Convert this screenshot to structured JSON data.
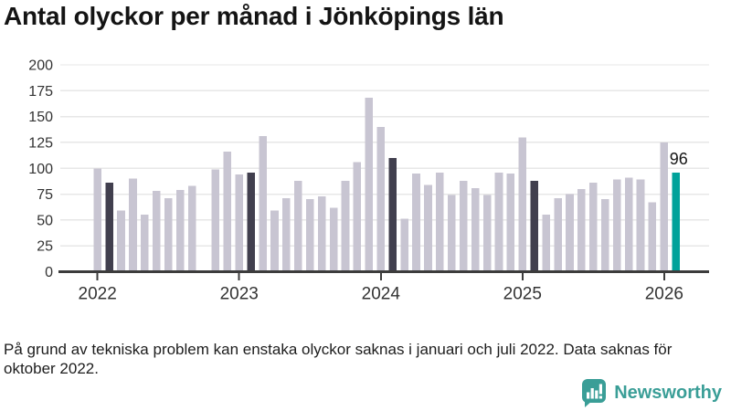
{
  "title": "Antal olyckor per månad i Jönköpings län",
  "footnote": "På grund av tekniska problem kan enstaka olyckor saknas i januari och juli 2022. Data saknas för oktober 2022.",
  "branding": {
    "name": "Newsworthy",
    "icon": "bar-chart-speech-bubble-icon",
    "color": "#3a9e97"
  },
  "colors": {
    "bar_default": "#c8c5d2",
    "bar_highlight": "#413f4e",
    "bar_current": "#00a29a",
    "gridline": "#e7e7e7",
    "axis": "#3c3c3c",
    "tick_label": "#333333",
    "annotation": "#151515"
  },
  "chart_data": {
    "type": "bar",
    "title": "Antal olyckor per månad i Jönköpings län",
    "xlabel": "",
    "ylabel": "",
    "ylim": [
      0,
      200
    ],
    "y_ticks": [
      0,
      25,
      50,
      75,
      100,
      125,
      150,
      175,
      200
    ],
    "x_tick_labels": [
      "2022",
      "2023",
      "2024",
      "2025",
      "2026"
    ],
    "grid": "horizontal",
    "legend": "none",
    "annotation": {
      "text": "96",
      "month": "2026-02"
    },
    "missing_data_months": [
      "2022-10"
    ],
    "months": [
      {
        "month": "2022-01",
        "value": 100,
        "role": "default"
      },
      {
        "month": "2022-02",
        "value": 86,
        "role": "highlight"
      },
      {
        "month": "2022-03",
        "value": 59,
        "role": "default"
      },
      {
        "month": "2022-04",
        "value": 90,
        "role": "default"
      },
      {
        "month": "2022-05",
        "value": 55,
        "role": "default"
      },
      {
        "month": "2022-06",
        "value": 78,
        "role": "default"
      },
      {
        "month": "2022-07",
        "value": 71,
        "role": "default"
      },
      {
        "month": "2022-08",
        "value": 79,
        "role": "default"
      },
      {
        "month": "2022-09",
        "value": 83,
        "role": "default"
      },
      {
        "month": "2022-10",
        "value": null,
        "role": "default"
      },
      {
        "month": "2022-11",
        "value": 99,
        "role": "default"
      },
      {
        "month": "2022-12",
        "value": 116,
        "role": "default"
      },
      {
        "month": "2023-01",
        "value": 94,
        "role": "default"
      },
      {
        "month": "2023-02",
        "value": 96,
        "role": "highlight"
      },
      {
        "month": "2023-03",
        "value": 131,
        "role": "default"
      },
      {
        "month": "2023-04",
        "value": 59,
        "role": "default"
      },
      {
        "month": "2023-05",
        "value": 71,
        "role": "default"
      },
      {
        "month": "2023-06",
        "value": 88,
        "role": "default"
      },
      {
        "month": "2023-07",
        "value": 70,
        "role": "default"
      },
      {
        "month": "2023-08",
        "value": 73,
        "role": "default"
      },
      {
        "month": "2023-09",
        "value": 62,
        "role": "default"
      },
      {
        "month": "2023-10",
        "value": 88,
        "role": "default"
      },
      {
        "month": "2023-11",
        "value": 106,
        "role": "default"
      },
      {
        "month": "2023-12",
        "value": 168,
        "role": "default"
      },
      {
        "month": "2024-01",
        "value": 140,
        "role": "default"
      },
      {
        "month": "2024-02",
        "value": 110,
        "role": "highlight"
      },
      {
        "month": "2024-03",
        "value": 51,
        "role": "default"
      },
      {
        "month": "2024-04",
        "value": 95,
        "role": "default"
      },
      {
        "month": "2024-05",
        "value": 84,
        "role": "default"
      },
      {
        "month": "2024-06",
        "value": 96,
        "role": "default"
      },
      {
        "month": "2024-07",
        "value": 74,
        "role": "default"
      },
      {
        "month": "2024-08",
        "value": 88,
        "role": "default"
      },
      {
        "month": "2024-09",
        "value": 81,
        "role": "default"
      },
      {
        "month": "2024-10",
        "value": 74,
        "role": "default"
      },
      {
        "month": "2024-11",
        "value": 96,
        "role": "default"
      },
      {
        "month": "2024-12",
        "value": 95,
        "role": "default"
      },
      {
        "month": "2025-01",
        "value": 130,
        "role": "default"
      },
      {
        "month": "2025-02",
        "value": 88,
        "role": "highlight"
      },
      {
        "month": "2025-03",
        "value": 55,
        "role": "default"
      },
      {
        "month": "2025-04",
        "value": 71,
        "role": "default"
      },
      {
        "month": "2025-05",
        "value": 75,
        "role": "default"
      },
      {
        "month": "2025-06",
        "value": 80,
        "role": "default"
      },
      {
        "month": "2025-07",
        "value": 86,
        "role": "default"
      },
      {
        "month": "2025-08",
        "value": 70,
        "role": "default"
      },
      {
        "month": "2025-09",
        "value": 89,
        "role": "default"
      },
      {
        "month": "2025-10",
        "value": 91,
        "role": "default"
      },
      {
        "month": "2025-11",
        "value": 89,
        "role": "default"
      },
      {
        "month": "2025-12",
        "value": 67,
        "role": "default"
      },
      {
        "month": "2026-01",
        "value": 125,
        "role": "default"
      },
      {
        "month": "2026-02",
        "value": 96,
        "role": "current",
        "label": "96"
      }
    ]
  }
}
